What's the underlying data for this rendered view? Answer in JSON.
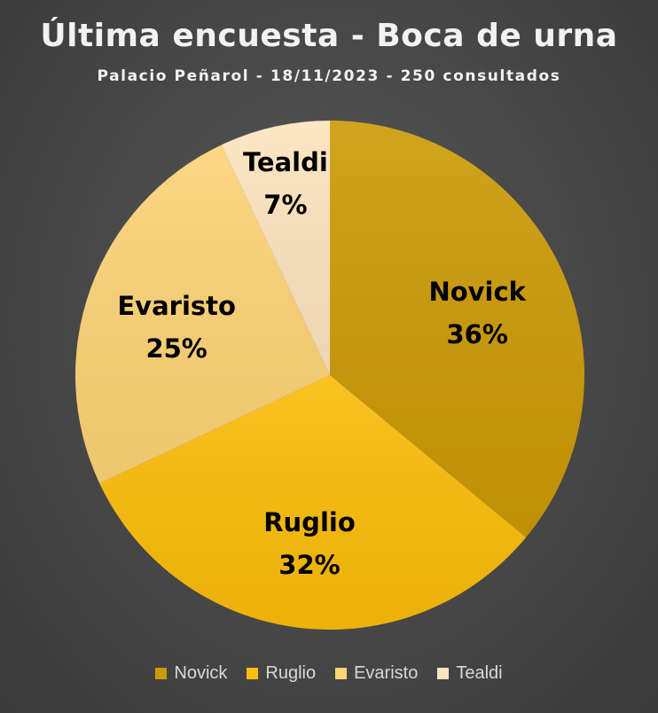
{
  "chart_data": {
    "type": "pie",
    "title": "Última encuesta - Boca de urna",
    "subtitle": "Palacio Peñarol - 18/11/2023 - 250 consultados",
    "legend_position": "bottom",
    "slices": [
      {
        "label": "Novick",
        "value": 36,
        "value_label": "36%",
        "color": "#cc9a06",
        "label_color": "#000000"
      },
      {
        "label": "Ruglio",
        "value": 32,
        "value_label": "32%",
        "color": "#fbbd0a",
        "label_color": "#000000"
      },
      {
        "label": "Evaristo",
        "value": 25,
        "value_label": "25%",
        "color": "#fdd376",
        "label_color": "#000000"
      },
      {
        "label": "Tealdi",
        "value": 7,
        "value_label": "7%",
        "color": "#fde4bf",
        "label_color": "#000000"
      }
    ]
  }
}
